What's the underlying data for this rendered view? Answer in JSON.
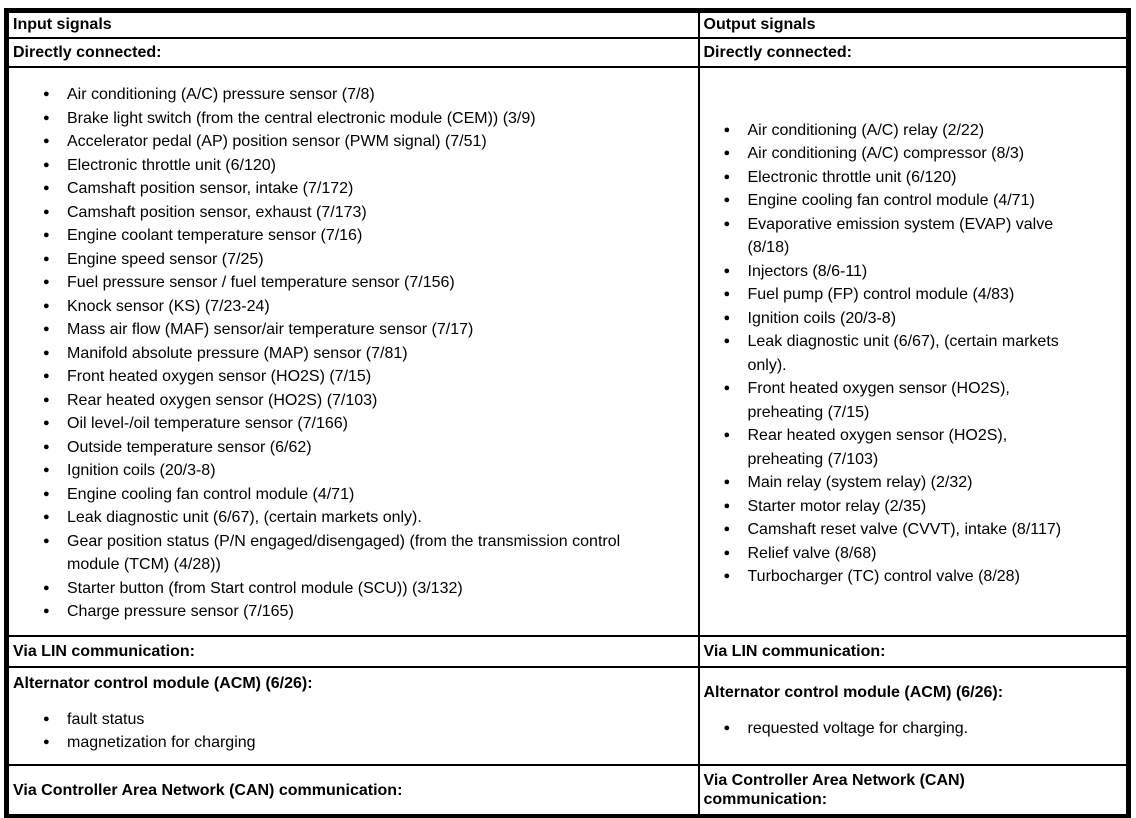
{
  "colors": {
    "background": "#ffffff",
    "border": "#000000",
    "text": "#000000"
  },
  "input_column": {
    "header": "Input signals",
    "directly_connected": {
      "label": "Directly connected:",
      "items": [
        "Air conditioning (A/C) pressure sensor (7/8)",
        "Brake light switch (from the central electronic module (CEM)) (3/9)",
        "Accelerator pedal (AP) position sensor (PWM signal) (7/51)",
        "Electronic throttle unit (6/120)",
        "Camshaft position sensor, intake (7/172)",
        "Camshaft position sensor, exhaust (7/173)",
        "Engine coolant temperature sensor (7/16)",
        "Engine speed sensor (7/25)",
        "Fuel pressure sensor / fuel temperature sensor (7/156)",
        "Knock sensor (KS) (7/23-24)",
        "Mass air flow (MAF) sensor/air temperature sensor (7/17)",
        "Manifold absolute pressure (MAP) sensor (7/81)",
        "Front heated oxygen sensor (HO2S) (7/15)",
        "Rear heated oxygen sensor (HO2S) (7/103)",
        "Oil level-/oil temperature sensor (7/166)",
        "Outside temperature sensor (6/62)",
        "Ignition coils (20/3-8)",
        "Engine cooling fan control module (4/71)",
        "Leak diagnostic unit (6/67), (certain markets only).",
        "Gear position status (P/N engaged/disengaged) (from the transmission control\nmodule (TCM) (4/28))",
        "Starter button (from Start control module (SCU)) (3/132)",
        "Charge pressure sensor (7/165)"
      ]
    },
    "via_lin": {
      "label": "Via LIN communication:"
    },
    "acm": {
      "header": "Alternator control module (ACM) (6/26):",
      "items": [
        "fault status",
        "magnetization for charging"
      ]
    },
    "via_can": {
      "label": "Via Controller Area Network (CAN) communication:"
    }
  },
  "output_column": {
    "header": "Output signals",
    "directly_connected": {
      "label": "Directly connected:",
      "items": [
        "Air conditioning (A/C) relay (2/22)",
        "Air conditioning (A/C) compressor (8/3)",
        "Electronic throttle unit (6/120)",
        "Engine cooling fan control module (4/71)",
        "Evaporative emission system (EVAP) valve\n(8/18)",
        "Injectors (8/6-11)",
        "Fuel pump (FP) control module (4/83)",
        "Ignition coils (20/3-8)",
        "Leak diagnostic unit (6/67), (certain markets\nonly).",
        "Front heated oxygen sensor (HO2S),\npreheating (7/15)",
        "Rear heated oxygen sensor (HO2S),\npreheating (7/103)",
        "Main relay (system relay) (2/32)",
        "Starter motor relay (2/35)",
        "Camshaft reset valve (CVVT), intake (8/117)",
        "Relief valve (8/68)",
        "Turbocharger (TC) control valve (8/28)"
      ]
    },
    "via_lin": {
      "label": "Via LIN communication:"
    },
    "acm": {
      "header": "Alternator control module (ACM) (6/26):",
      "items": [
        "requested voltage for charging."
      ]
    },
    "via_can": {
      "label": "Via Controller Area Network (CAN)\ncommunication:"
    }
  }
}
